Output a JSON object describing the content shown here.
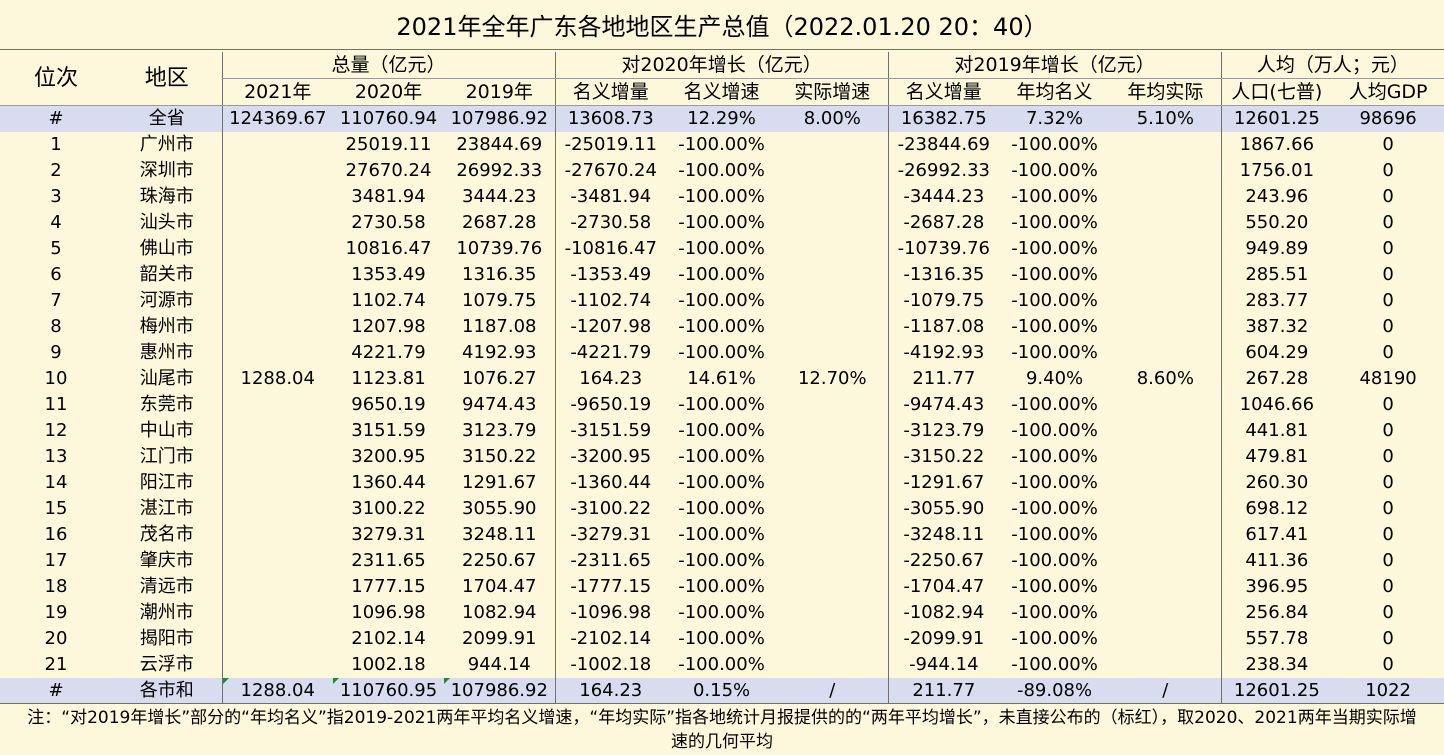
{
  "title": "2021年全年广东各地地区生产总值（2022.01.20 20：40）",
  "headers": {
    "rank": "位次",
    "region": "地区",
    "group_total": "总量（亿元）",
    "group_2020": "对2020年增长（亿元）",
    "group_2019": "对2019年增长（亿元）",
    "group_percap": "人均（万人；元）",
    "sub": [
      "2021年",
      "2020年",
      "2019年",
      "名义增量",
      "名义增速",
      "实际增速",
      "名义增量",
      "年均名义",
      "年均实际",
      "人口(七普)",
      "人均GDP"
    ]
  },
  "province_row": [
    "#",
    "全省",
    "124369.67",
    "110760.94",
    "107986.92",
    "13608.73",
    "12.29%",
    "8.00%",
    "16382.75",
    "7.32%",
    "5.10%",
    "12601.25",
    "98696"
  ],
  "rows": [
    [
      "1",
      "广州市",
      "",
      "25019.11",
      "23844.69",
      "-25019.11",
      "-100.00%",
      "",
      "-23844.69",
      "-100.00%",
      "",
      "1867.66",
      "0"
    ],
    [
      "2",
      "深圳市",
      "",
      "27670.24",
      "26992.33",
      "-27670.24",
      "-100.00%",
      "",
      "-26992.33",
      "-100.00%",
      "",
      "1756.01",
      "0"
    ],
    [
      "3",
      "珠海市",
      "",
      "3481.94",
      "3444.23",
      "-3481.94",
      "-100.00%",
      "",
      "-3444.23",
      "-100.00%",
      "",
      "243.96",
      "0"
    ],
    [
      "4",
      "汕头市",
      "",
      "2730.58",
      "2687.28",
      "-2730.58",
      "-100.00%",
      "",
      "-2687.28",
      "-100.00%",
      "",
      "550.20",
      "0"
    ],
    [
      "5",
      "佛山市",
      "",
      "10816.47",
      "10739.76",
      "-10816.47",
      "-100.00%",
      "",
      "-10739.76",
      "-100.00%",
      "",
      "949.89",
      "0"
    ],
    [
      "6",
      "韶关市",
      "",
      "1353.49",
      "1316.35",
      "-1353.49",
      "-100.00%",
      "",
      "-1316.35",
      "-100.00%",
      "",
      "285.51",
      "0"
    ],
    [
      "7",
      "河源市",
      "",
      "1102.74",
      "1079.75",
      "-1102.74",
      "-100.00%",
      "",
      "-1079.75",
      "-100.00%",
      "",
      "283.77",
      "0"
    ],
    [
      "8",
      "梅州市",
      "",
      "1207.98",
      "1187.08",
      "-1207.98",
      "-100.00%",
      "",
      "-1187.08",
      "-100.00%",
      "",
      "387.32",
      "0"
    ],
    [
      "9",
      "惠州市",
      "",
      "4221.79",
      "4192.93",
      "-4221.79",
      "-100.00%",
      "",
      "-4192.93",
      "-100.00%",
      "",
      "604.29",
      "0"
    ],
    [
      "10",
      "汕尾市",
      "1288.04",
      "1123.81",
      "1076.27",
      "164.23",
      "14.61%",
      "12.70%",
      "211.77",
      "9.40%",
      "8.60%",
      "267.28",
      "48190"
    ],
    [
      "11",
      "东莞市",
      "",
      "9650.19",
      "9474.43",
      "-9650.19",
      "-100.00%",
      "",
      "-9474.43",
      "-100.00%",
      "",
      "1046.66",
      "0"
    ],
    [
      "12",
      "中山市",
      "",
      "3151.59",
      "3123.79",
      "-3151.59",
      "-100.00%",
      "",
      "-3123.79",
      "-100.00%",
      "",
      "441.81",
      "0"
    ],
    [
      "13",
      "江门市",
      "",
      "3200.95",
      "3150.22",
      "-3200.95",
      "-100.00%",
      "",
      "-3150.22",
      "-100.00%",
      "",
      "479.81",
      "0"
    ],
    [
      "14",
      "阳江市",
      "",
      "1360.44",
      "1291.67",
      "-1360.44",
      "-100.00%",
      "",
      "-1291.67",
      "-100.00%",
      "",
      "260.30",
      "0"
    ],
    [
      "15",
      "湛江市",
      "",
      "3100.22",
      "3055.90",
      "-3100.22",
      "-100.00%",
      "",
      "-3055.90",
      "-100.00%",
      "",
      "698.12",
      "0"
    ],
    [
      "16",
      "茂名市",
      "",
      "3279.31",
      "3248.11",
      "-3279.31",
      "-100.00%",
      "",
      "-3248.11",
      "-100.00%",
      "",
      "617.41",
      "0"
    ],
    [
      "17",
      "肇庆市",
      "",
      "2311.65",
      "2250.67",
      "-2311.65",
      "-100.00%",
      "",
      "-2250.67",
      "-100.00%",
      "",
      "411.36",
      "0"
    ],
    [
      "18",
      "清远市",
      "",
      "1777.15",
      "1704.47",
      "-1777.15",
      "-100.00%",
      "",
      "-1704.47",
      "-100.00%",
      "",
      "396.95",
      "0"
    ],
    [
      "19",
      "潮州市",
      "",
      "1096.98",
      "1082.94",
      "-1096.98",
      "-100.00%",
      "",
      "-1082.94",
      "-100.00%",
      "",
      "256.84",
      "0"
    ],
    [
      "20",
      "揭阳市",
      "",
      "2102.14",
      "2099.91",
      "-2102.14",
      "-100.00%",
      "",
      "-2099.91",
      "-100.00%",
      "",
      "557.78",
      "0"
    ],
    [
      "21",
      "云浮市",
      "",
      "1002.18",
      "944.14",
      "-1002.18",
      "-100.00%",
      "",
      "-944.14",
      "-100.00%",
      "",
      "238.34",
      "0"
    ]
  ],
  "sum_row": [
    "#",
    "各市和",
    "1288.04",
    "110760.95",
    "107986.92",
    "164.23",
    "0.15%",
    "/",
    "211.77",
    "-89.08%",
    "/",
    "12601.25",
    "1022"
  ],
  "note": "注：“对2019年增长”部分的“年均名义”指2019-2021两年平均名义增速，“年均实际”指各地统计月报提供的的“两年平均增长”，未直接公布的（标红），取2020、2021两年当期实际增速的几何平均",
  "colors": {
    "background": "#fdf8dc",
    "highlight_row": "#d7dcef",
    "grid_line": "#6f6f6f"
  }
}
